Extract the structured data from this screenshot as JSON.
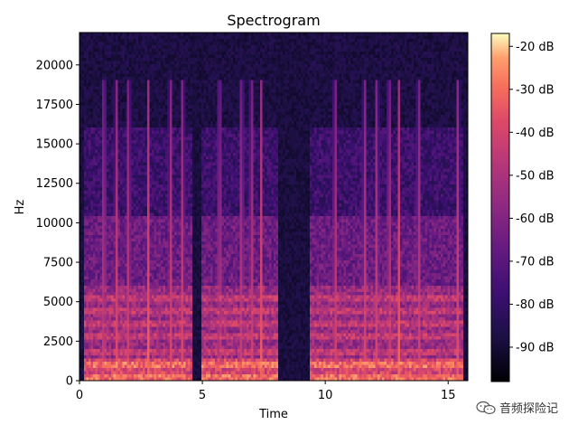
{
  "chart_data": {
    "type": "heatmap",
    "title": "Spectrogram",
    "xlabel": "Time",
    "ylabel": "Hz",
    "xlim": [
      0,
      15.8
    ],
    "ylim": [
      0,
      22050
    ],
    "x_ticks": [
      0,
      5,
      10,
      15
    ],
    "x_tick_labels": [
      "0",
      "5",
      "10",
      "15"
    ],
    "y_ticks": [
      0,
      2500,
      5000,
      7500,
      10000,
      12500,
      15000,
      17500,
      20000
    ],
    "y_tick_labels": [
      "0",
      "2500",
      "5000",
      "7500",
      "10000",
      "12500",
      "15000",
      "17500",
      "20000"
    ],
    "colormap": "magma",
    "colorbar": {
      "range_db": [
        -98,
        -17
      ],
      "ticks": [
        -20,
        -30,
        -40,
        -50,
        -60,
        -70,
        -80,
        -90
      ],
      "tick_labels": [
        "-20 dB",
        "-30 dB",
        "-40 dB",
        "-50 dB",
        "-60 dB",
        "-70 dB",
        "-80 dB",
        "-90 dB"
      ]
    },
    "voiced_segments": [
      {
        "start": 0.2,
        "end": 4.6
      },
      {
        "start": 5.0,
        "end": 8.1
      },
      {
        "start": 9.4,
        "end": 15.6
      }
    ],
    "transients": [
      1.0,
      1.5,
      2.0,
      2.8,
      3.7,
      4.2,
      5.7,
      6.6,
      7.0,
      7.4,
      10.4,
      11.6,
      12.1,
      12.6,
      13.0,
      13.8,
      15.4
    ]
  },
  "watermark": {
    "text": "音频探险记",
    "icon": "wechat-icon"
  }
}
